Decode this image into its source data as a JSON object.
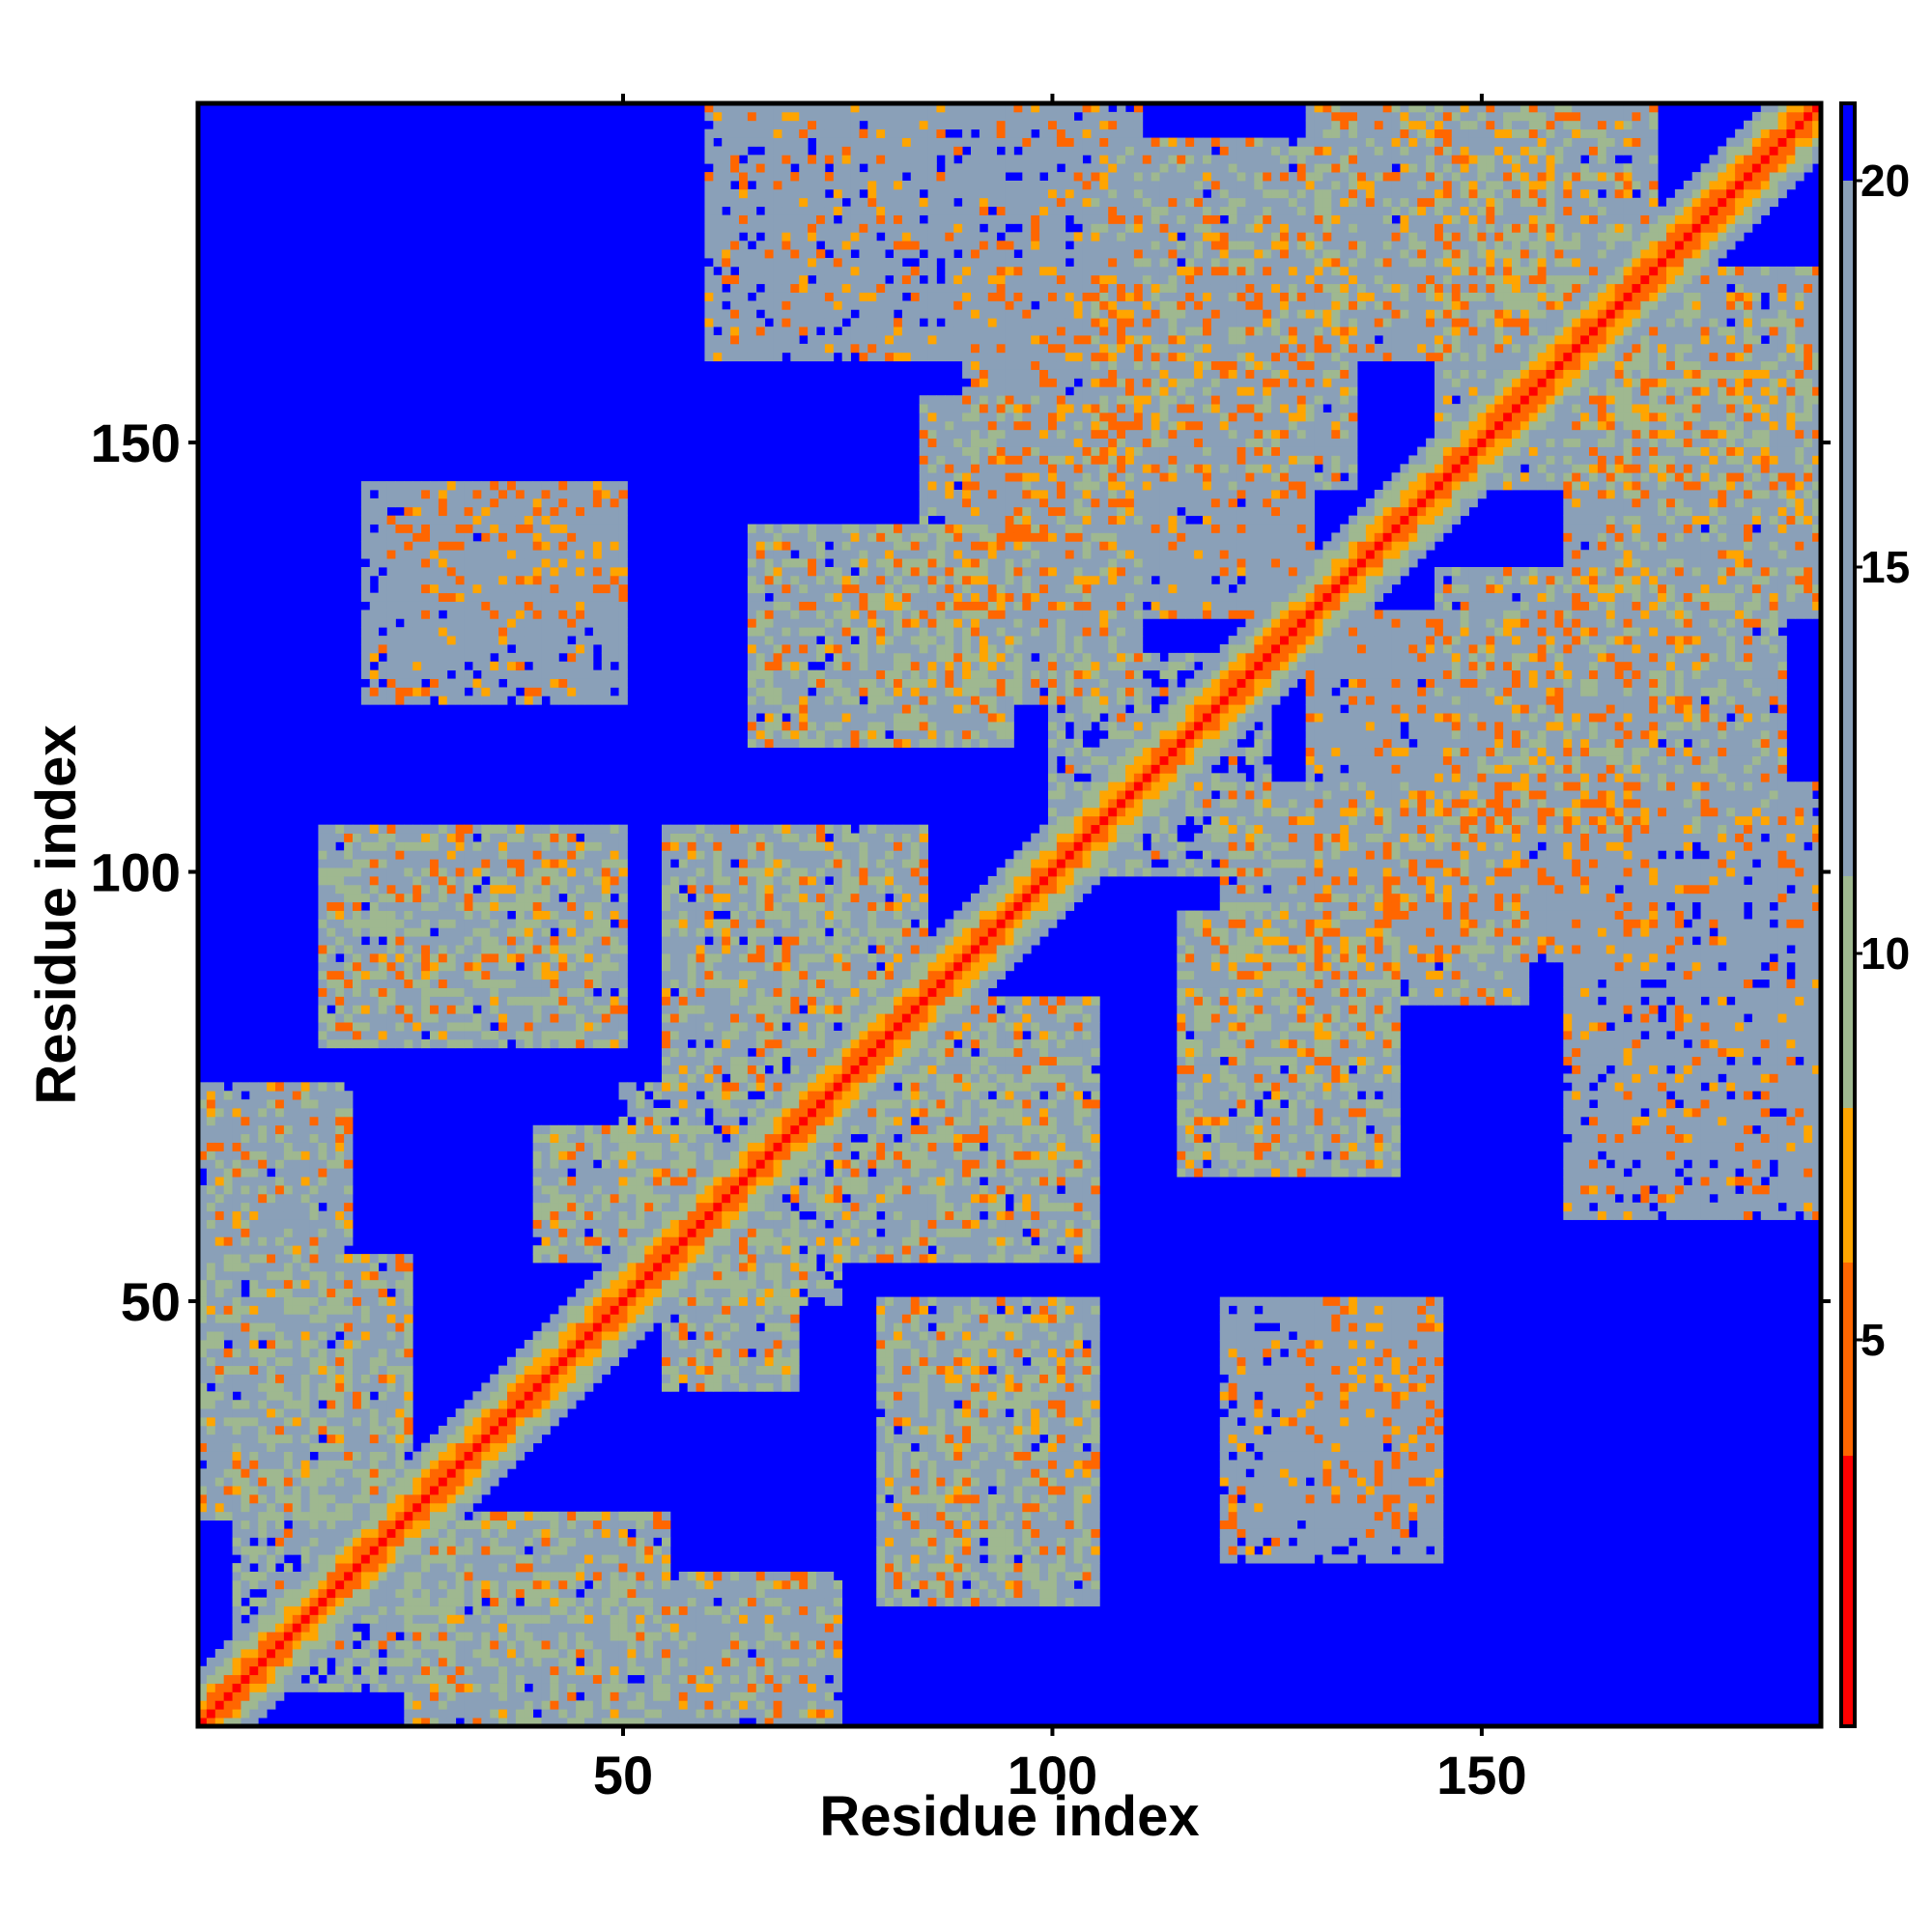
{
  "chart_data": {
    "type": "heatmap",
    "title": "",
    "xlabel": "Residue index",
    "ylabel": "Residue index",
    "n_residues": 189,
    "xlim": [
      1,
      189
    ],
    "ylim": [
      1,
      189
    ],
    "x_ticks": [
      50,
      100,
      150
    ],
    "y_ticks": [
      50,
      100,
      150
    ],
    "colorbar": {
      "ticks": [
        5,
        10,
        15,
        20
      ],
      "range": [
        0,
        21
      ],
      "colors": [
        "#ff0000",
        "#ff6600",
        "#ffa500",
        "#9fb890",
        "#8aa0b8",
        "#0000ff"
      ],
      "thresholds": [
        3.5,
        6,
        8,
        11,
        20
      ]
    },
    "structure": {
      "diagonal_half_width": 6,
      "diagonal_core_value": 2,
      "contact_blocks": [
        {
          "x": [
            5,
            30
          ],
          "y": [
            5,
            30
          ],
          "v": 11
        },
        {
          "x": [
            1,
            25
          ],
          "y": [
            25,
            55
          ],
          "v": 12
        },
        {
          "x": [
            25,
            55
          ],
          "y": [
            1,
            25
          ],
          "v": 12
        },
        {
          "x": [
            1,
            18
          ],
          "y": [
            55,
            75
          ],
          "v": 13
        },
        {
          "x": [
            55,
            75
          ],
          "y": [
            1,
            18
          ],
          "v": 13
        },
        {
          "x": [
            15,
            50
          ],
          "y": [
            80,
            105
          ],
          "v": 12
        },
        {
          "x": [
            80,
            105
          ],
          "y": [
            15,
            50
          ],
          "v": 12
        },
        {
          "x": [
            50,
            75
          ],
          "y": [
            50,
            75
          ],
          "v": 11
        },
        {
          "x": [
            40,
            60
          ],
          "y": [
            55,
            70
          ],
          "v": 12
        },
        {
          "x": [
            55,
            70
          ],
          "y": [
            40,
            60
          ],
          "v": 12
        },
        {
          "x": [
            55,
            85
          ],
          "y": [
            75,
            105
          ],
          "v": 12
        },
        {
          "x": [
            75,
            105
          ],
          "y": [
            55,
            85
          ],
          "v": 12
        },
        {
          "x": [
            65,
            95
          ],
          "y": [
            115,
            140
          ],
          "v": 12
        },
        {
          "x": [
            115,
            140
          ],
          "y": [
            65,
            95
          ],
          "v": 12
        },
        {
          "x": [
            85,
            110
          ],
          "y": [
            120,
            155
          ],
          "v": 13
        },
        {
          "x": [
            120,
            155
          ],
          "y": [
            85,
            110
          ],
          "v": 13
        },
        {
          "x": [
            105,
            135
          ],
          "y": [
            145,
            185
          ],
          "v": 13
        },
        {
          "x": [
            145,
            185
          ],
          "y": [
            105,
            135
          ],
          "v": 13
        },
        {
          "x": [
            130,
            160
          ],
          "y": [
            160,
            189
          ],
          "v": 13
        },
        {
          "x": [
            160,
            189
          ],
          "y": [
            130,
            160
          ],
          "v": 13
        },
        {
          "x": [
            90,
            130
          ],
          "y": [
            130,
            170
          ],
          "v": 14
        },
        {
          "x": [
            130,
            170
          ],
          "y": [
            90,
            130
          ],
          "v": 14
        },
        {
          "x": [
            60,
            110
          ],
          "y": [
            160,
            189
          ],
          "v": 16
        },
        {
          "x": [
            160,
            189
          ],
          "y": [
            60,
            110
          ],
          "v": 16
        },
        {
          "x": [
            25,
            50
          ],
          "y": [
            130,
            145
          ],
          "v": 16
        },
        {
          "x": [
            130,
            145
          ],
          "y": [
            25,
            50
          ],
          "v": 16
        },
        {
          "x": [
            120,
            145
          ],
          "y": [
            20,
            50
          ],
          "v": 16
        },
        {
          "x": [
            20,
            50
          ],
          "y": [
            120,
            145
          ],
          "v": 16
        },
        {
          "x": [
            150,
            189
          ],
          "y": [
            145,
            170
          ],
          "v": 13
        },
        {
          "x": [
            145,
            170
          ],
          "y": [
            150,
            189
          ],
          "v": 13
        },
        {
          "x": [
            100,
            125
          ],
          "y": [
            100,
            125
          ],
          "v": 11
        },
        {
          "x": [
            150,
            175
          ],
          "y": [
            150,
            175
          ],
          "v": 11
        }
      ]
    }
  }
}
